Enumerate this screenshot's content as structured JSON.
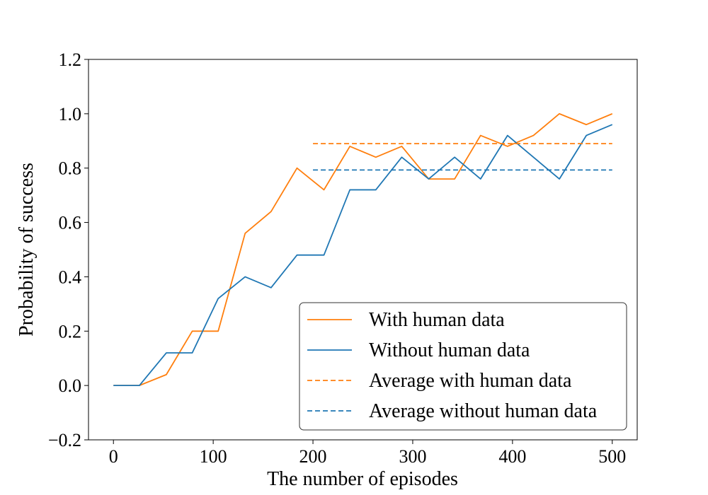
{
  "chart_data": {
    "type": "line",
    "title": "",
    "xlabel": "The number of episodes",
    "ylabel": "Probability of success",
    "xlim": [
      -25,
      525
    ],
    "ylim": [
      -0.2,
      1.2
    ],
    "xticks": [
      0,
      100,
      200,
      300,
      400,
      500
    ],
    "xtick_labels": [
      "0",
      "100",
      "200",
      "300",
      "400",
      "500"
    ],
    "yticks": [
      -0.2,
      0.0,
      0.2,
      0.4,
      0.6,
      0.8,
      1.0,
      1.2
    ],
    "ytick_labels": [
      "−0.2",
      "0.0",
      "0.2",
      "0.4",
      "0.6",
      "0.8",
      "1.0",
      "1.2"
    ],
    "grid": false,
    "legend_position": "bottom-right",
    "x": [
      0,
      26,
      53,
      79,
      105,
      132,
      158,
      184,
      211,
      237,
      263,
      289,
      316,
      342,
      368,
      395,
      421,
      447,
      474,
      500
    ],
    "series": [
      {
        "name": "With human data",
        "style": "solid",
        "color": "#ff7f0e",
        "values": [
          0.0,
          0.0,
          0.04,
          0.2,
          0.2,
          0.56,
          0.64,
          0.8,
          0.72,
          0.88,
          0.84,
          0.88,
          0.76,
          0.76,
          0.92,
          0.88,
          0.92,
          1.0,
          0.96,
          1.0
        ]
      },
      {
        "name": "Without human data",
        "style": "solid",
        "color": "#1f77b4",
        "values": [
          0.0,
          0.0,
          0.12,
          0.12,
          0.32,
          0.4,
          0.36,
          0.48,
          0.48,
          0.72,
          0.72,
          0.84,
          0.76,
          0.84,
          0.76,
          0.92,
          0.84,
          0.76,
          0.92,
          0.96
        ]
      },
      {
        "name": "Average with human data",
        "style": "dashed",
        "color": "#ff7f0e",
        "x": [
          200,
          500
        ],
        "values": [
          0.89,
          0.89
        ]
      },
      {
        "name": "Average without human data",
        "style": "dashed",
        "color": "#1f77b4",
        "x": [
          200,
          500
        ],
        "values": [
          0.793,
          0.793
        ]
      }
    ]
  }
}
